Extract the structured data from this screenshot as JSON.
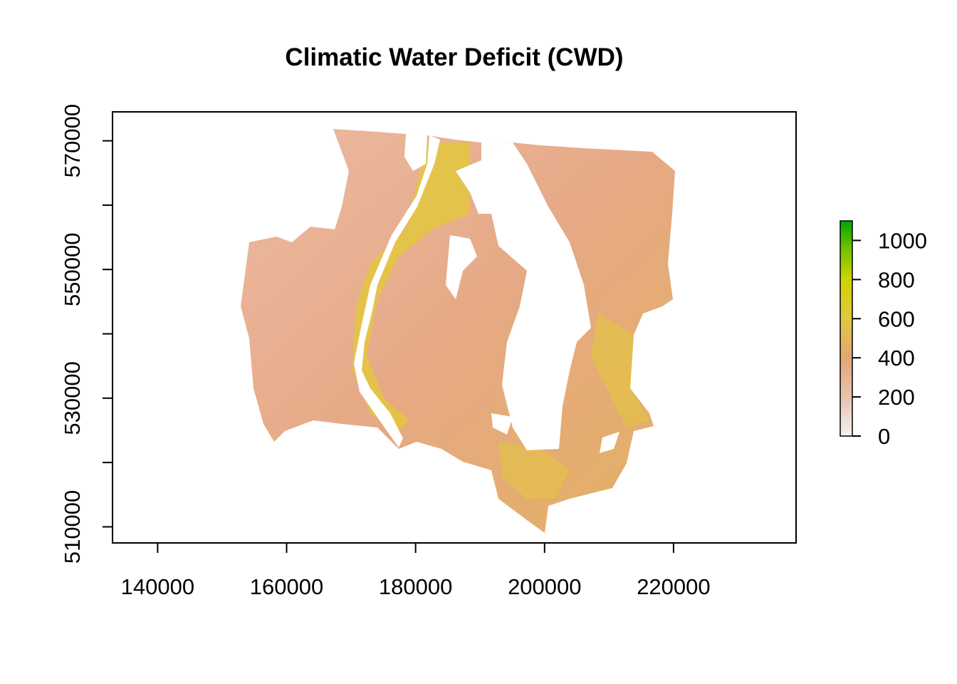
{
  "chart_data": {
    "type": "heatmap",
    "title": "Climatic Water Deficit (CWD)",
    "xlabel": "",
    "ylabel": "",
    "xlim": [
      133000,
      239000
    ],
    "ylim": [
      507500,
      574500
    ],
    "x_ticks": [
      140000,
      160000,
      180000,
      200000,
      220000
    ],
    "x_tick_labels": [
      "140000",
      "160000",
      "180000",
      "200000",
      "220000"
    ],
    "y_ticks": [
      510000,
      520000,
      530000,
      540000,
      550000,
      560000,
      570000
    ],
    "y_tick_labels": [
      "510000",
      "",
      "530000",
      "",
      "550000",
      "",
      "570000"
    ],
    "grid": false,
    "legend": {
      "placement": "right",
      "min": 0,
      "max": 1100,
      "ticks": [
        0,
        200,
        400,
        600,
        800,
        1000
      ],
      "tick_labels": [
        "0",
        "200",
        "400",
        "600",
        "800",
        "1000"
      ],
      "colors": [
        "#f2f2f2",
        "#e9c2ae",
        "#e4a673",
        "#e3c73e",
        "#e2e200",
        "#8cc800",
        "#00a600"
      ]
    },
    "colors": {
      "low": "#e9b49b",
      "mid": "#e5a87a",
      "high": "#e3c73e",
      "background": "#ffffff"
    }
  }
}
